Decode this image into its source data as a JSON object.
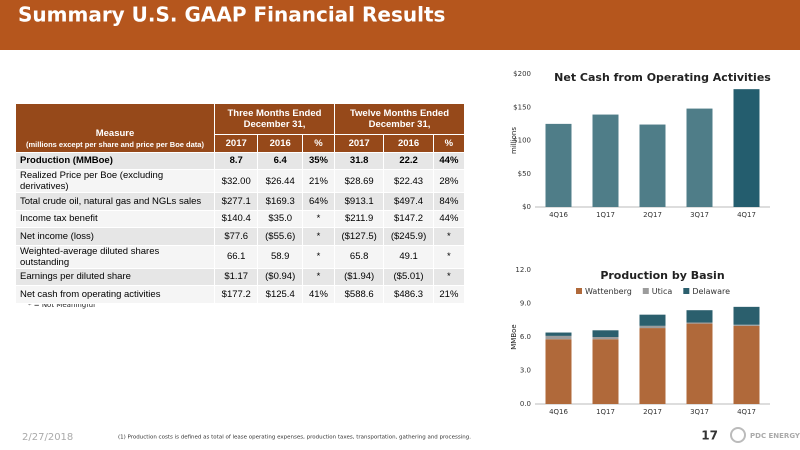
{
  "header": {
    "title": "Summary U.S. GAAP Financial Results"
  },
  "table": {
    "measure_header": "Measure",
    "measure_note": "(millions except per share and price per Boe data)",
    "group_headers": [
      "Three Months Ended December 31,",
      "Twelve Months Ended December 31,"
    ],
    "sub_headers": [
      "2017",
      "2016",
      "%",
      "2017",
      "2016",
      "%"
    ],
    "rows": [
      [
        "Production (MMBoe)",
        "8.7",
        "6.4",
        "35%",
        "31.8",
        "22.2",
        "44%"
      ],
      [
        "Realized Price per Boe (excluding derivatives)",
        "$32.00",
        "$26.44",
        "21%",
        "$28.69",
        "$22.43",
        "28%"
      ],
      [
        "Total crude oil, natural gas and NGLs sales",
        "$277.1",
        "$169.3",
        "64%",
        "$913.1",
        "$497.4",
        "84%"
      ],
      [
        "Income tax benefit",
        "$140.4",
        "$35.0",
        "*",
        "$211.9",
        "$147.2",
        "44%"
      ],
      [
        "Net income (loss)",
        "$77.6",
        "($55.6)",
        "*",
        "($127.5)",
        "($245.9)",
        "*"
      ],
      [
        "Weighted-average diluted shares outstanding",
        "66.1",
        "58.9",
        "*",
        "65.8",
        "49.1",
        "*"
      ],
      [
        "Earnings per diluted share",
        "$1.17",
        "($0.94)",
        "*",
        "($1.94)",
        "($5.01)",
        "*"
      ],
      [
        "Net cash from operating activities",
        "$177.2",
        "$125.4",
        "41%",
        "$588.6",
        "$486.3",
        "21%"
      ]
    ],
    "note": "* = Not Meaningful"
  },
  "chart_data": [
    {
      "type": "bar",
      "title": "Net Cash from Operating Activities",
      "y_label": "millions",
      "categories": [
        "4Q16",
        "1Q17",
        "2Q17",
        "3Q17",
        "4Q17"
      ],
      "values": [
        125,
        139,
        124,
        148,
        177.2
      ],
      "colors": [
        "#4f7d88",
        "#4f7d88",
        "#4f7d88",
        "#4f7d88",
        "#245d6e"
      ],
      "ylim": [
        0,
        200
      ],
      "yticks": [
        {
          "value": 0,
          "label": "$0"
        },
        {
          "value": 50,
          "label": "$50"
        },
        {
          "value": 100,
          "label": "$100"
        },
        {
          "value": 150,
          "label": "$150"
        },
        {
          "value": 200,
          "label": "$200"
        }
      ]
    },
    {
      "type": "stacked_bar",
      "title": "Production by Basin",
      "y_label": "MMBoe",
      "categories": [
        "4Q16",
        "1Q17",
        "2Q17",
        "3Q17",
        "4Q17"
      ],
      "series": [
        {
          "name": "Wattenberg",
          "color": "#b0693a",
          "values": [
            5.8,
            5.8,
            6.8,
            7.2,
            7.0
          ]
        },
        {
          "name": "Utica",
          "color": "#9c9c9c",
          "values": [
            0.3,
            0.2,
            0.2,
            0.1,
            0.1
          ]
        },
        {
          "name": "Delaware",
          "color": "#2b5f6d",
          "values": [
            0.3,
            0.6,
            1.0,
            1.1,
            1.6
          ]
        }
      ],
      "ylim": [
        0,
        12
      ],
      "yticks": [
        {
          "value": 0,
          "label": "0.0"
        },
        {
          "value": 3,
          "label": "3.0"
        },
        {
          "value": 6,
          "label": "6.0"
        },
        {
          "value": 9,
          "label": "9.0"
        },
        {
          "value": 12,
          "label": "12.0"
        }
      ]
    }
  ],
  "footer": {
    "date": "2/27/2018",
    "footnote": "(1) Production costs is defined as total of lease operating expenses, production taxes, transportation, gathering and processing.",
    "page": "17",
    "logo": "PDC ENERGY"
  }
}
